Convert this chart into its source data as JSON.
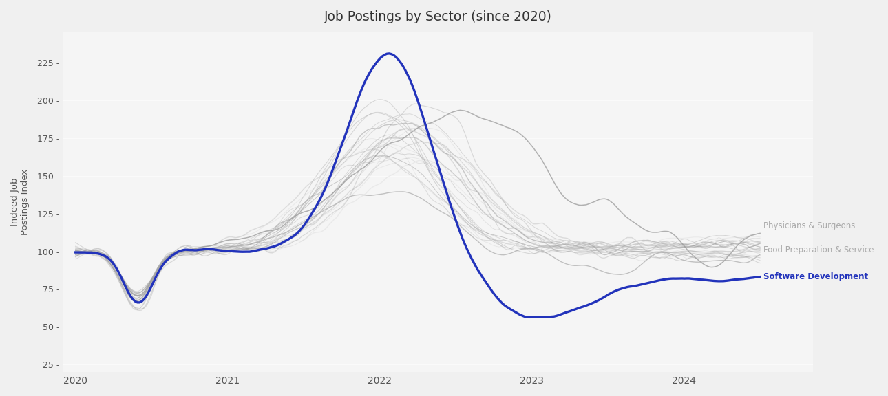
{
  "title": "Job Postings by Sector (since 2020)",
  "ylabel_line1": "Indeed Job",
  "ylabel_line2": "Postings Index",
  "ylim": [
    20,
    245
  ],
  "yticks": [
    25,
    50,
    75,
    100,
    125,
    150,
    175,
    200,
    225
  ],
  "xtick_labels": [
    "2020",
    "2021",
    "2022",
    "2023",
    "2024"
  ],
  "label_physicians": "Physicians & Surgeons",
  "label_food": "Food Preparation & Service",
  "label_software": "Software Development",
  "software_color": "#2233bb",
  "gray_color_light": "#c8c8c8",
  "gray_color_dark": "#888888",
  "physicians_label_color": "#aaaaaa",
  "food_label_color": "#aaaaaa",
  "software_label_color": "#2233bb",
  "n_gray_lines": 22,
  "n_points": 300,
  "bg_color": "#f5f5f5",
  "fig_color": "#f0f0f0"
}
